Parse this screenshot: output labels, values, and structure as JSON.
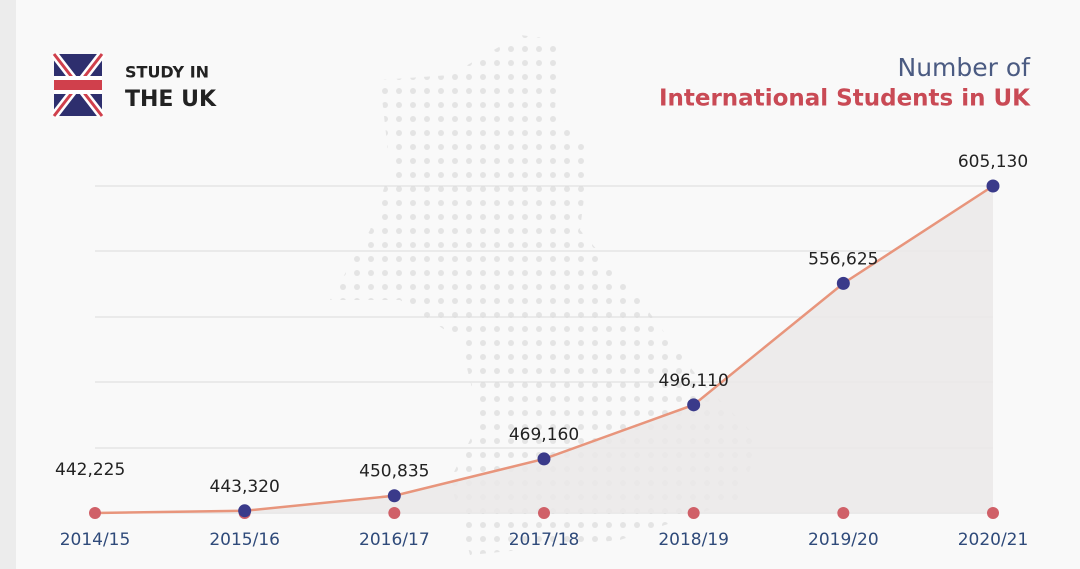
{
  "logo": {
    "line1": "STUDY IN",
    "line2": "THE UK"
  },
  "chart_data": {
    "type": "line",
    "title": "Number of",
    "subtitle": "International Students in UK",
    "categories": [
      "2014/15",
      "2015/16",
      "2016/17",
      "2017/18",
      "2018/19",
      "2019/20",
      "2020/21"
    ],
    "values": [
      442225,
      443320,
      450835,
      469160,
      496110,
      556625,
      605130
    ],
    "value_labels": [
      "442,225",
      "443,320",
      "450,835",
      "469,160",
      "496,110",
      "556,625",
      "605,130"
    ],
    "color": "#e8957c",
    "marker_color": "#3a3a8a",
    "area_color": "#ebe9e9",
    "baseline_marker_color": "#d06068",
    "grid": true
  }
}
